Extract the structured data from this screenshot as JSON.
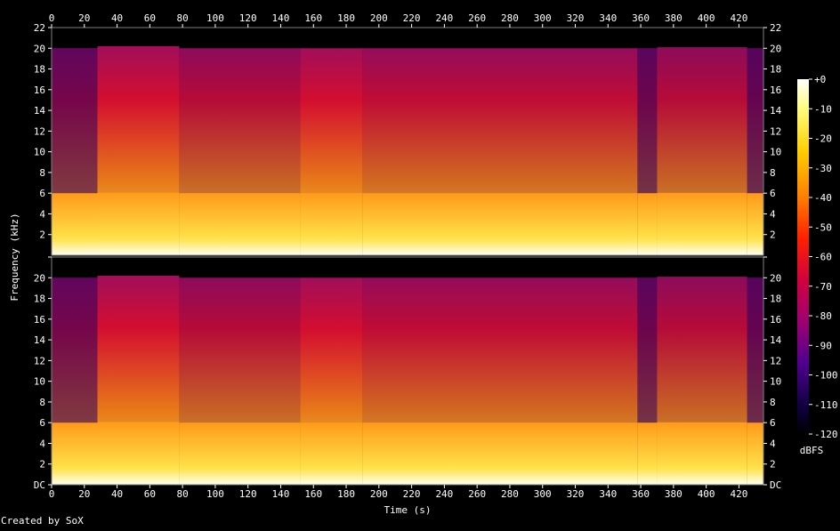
{
  "credit": "Created by SoX",
  "chart_data": {
    "type": "heatmap",
    "xlabel": "Time (s)",
    "ylabel": "Frequency (kHz)",
    "xlim": [
      0,
      435
    ],
    "ylim": [
      0,
      22
    ],
    "x_ticks": [
      "0",
      "20",
      "40",
      "60",
      "80",
      "100",
      "120",
      "140",
      "160",
      "180",
      "200",
      "220",
      "240",
      "260",
      "280",
      "300",
      "320",
      "340",
      "360",
      "380",
      "400",
      "420"
    ],
    "y_ticks": [
      "DC",
      "2",
      "4",
      "6",
      "8",
      "10",
      "12",
      "14",
      "16",
      "18",
      "20",
      "22"
    ],
    "channels": 2,
    "colorbar": {
      "label": "dBFS",
      "ticks": [
        "+0",
        "-10",
        "-20",
        "-30",
        "-40",
        "-50",
        "-60",
        "-70",
        "-80",
        "-90",
        "-100",
        "-110",
        "-120"
      ],
      "range": [
        -120,
        0
      ]
    },
    "segments": [
      {
        "start": 0,
        "end": 28,
        "cutoff_khz": 20.0,
        "level_db": -78
      },
      {
        "start": 28,
        "end": 78,
        "cutoff_khz": 20.2,
        "level_db": -55
      },
      {
        "start": 78,
        "end": 152,
        "cutoff_khz": 20.0,
        "level_db": -62
      },
      {
        "start": 152,
        "end": 190,
        "cutoff_khz": 20.0,
        "level_db": -55
      },
      {
        "start": 190,
        "end": 358,
        "cutoff_khz": 20.0,
        "level_db": -60
      },
      {
        "start": 358,
        "end": 370,
        "cutoff_khz": 20.0,
        "level_db": -80
      },
      {
        "start": 370,
        "end": 425,
        "cutoff_khz": 20.1,
        "level_db": -62
      },
      {
        "start": 425,
        "end": 435,
        "cutoff_khz": 20.0,
        "level_db": -82
      }
    ]
  }
}
